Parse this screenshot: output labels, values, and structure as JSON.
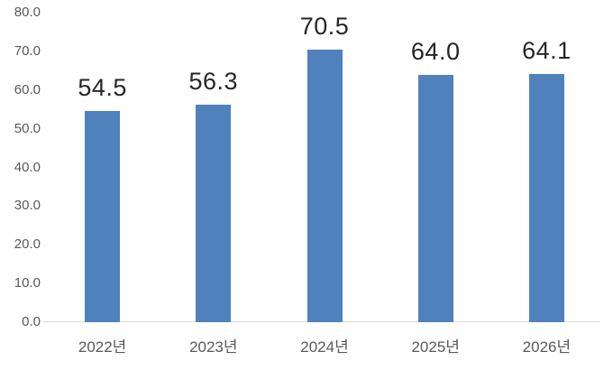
{
  "chart": {
    "title": "",
    "background": "#FFFFFF",
    "bar_color": "#4F81BD",
    "data_label_color": "#262626",
    "axis_label_color": "#595959",
    "axis_line_color": "#D9D9D9"
  },
  "chart_data": {
    "type": "bar",
    "title": "",
    "xlabel": "",
    "ylabel": "",
    "categories": [
      "2022년",
      "2023년",
      "2024년",
      "2025년",
      "2026년"
    ],
    "values": [
      54.5,
      56.3,
      70.5,
      64.0,
      64.1
    ],
    "data_labels": [
      "54.5",
      "56.3",
      "70.5",
      "64.0",
      "64.1"
    ],
    "ylim": [
      0,
      80
    ],
    "ytick_step": 10,
    "ytick_labels": [
      "0.0",
      "10.0",
      "20.0",
      "30.0",
      "40.0",
      "50.0",
      "60.0",
      "70.0",
      "80.0"
    ],
    "grid": false,
    "legend_position": "none"
  }
}
